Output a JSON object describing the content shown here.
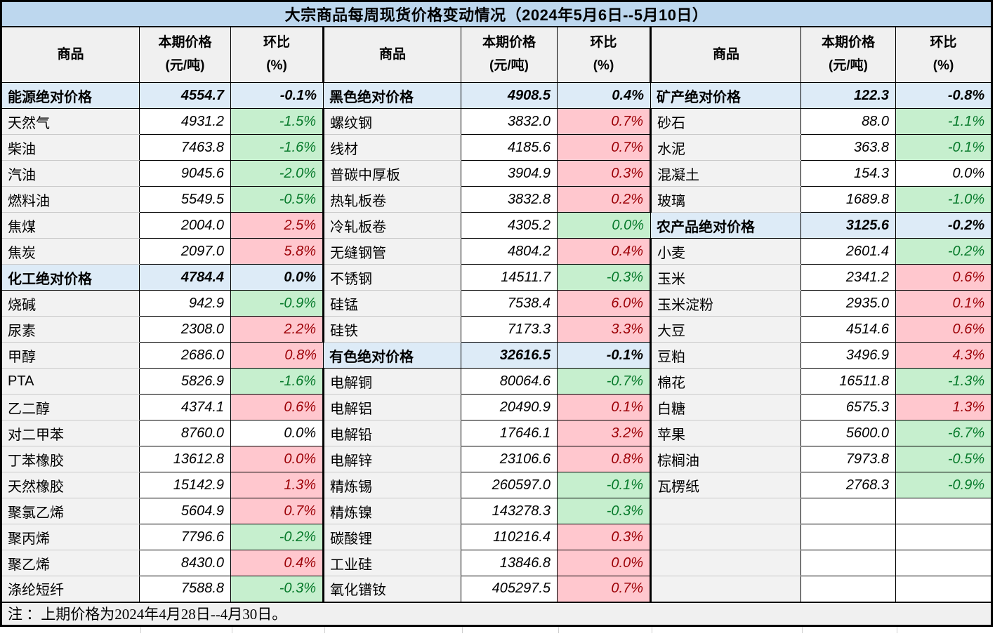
{
  "title": "大宗商品每周现货价格变动情况（2024年5月6日--5月10日）",
  "note": "注 ：上期价格为2024年4月28日--4月30日。",
  "header": {
    "commodity": "商品",
    "price_line1": "本期价格",
    "price_line2": "(元/吨)",
    "pct_line1": "环比",
    "pct_line2": "(%)"
  },
  "colors": {
    "title_bg": "#BDD7EE",
    "header_bg": "#F0F0F0",
    "name_bg": "#F2F2F2",
    "section_bg": "#DDEBF7",
    "up_bg": "#FFC7CE",
    "up_text": "#9C0006",
    "down_bg": "#C6EFCE",
    "down_text": "#077A2B"
  },
  "chart_data": {
    "type": "table",
    "title": "大宗商品每周现货价格变动情况（2024年5月6日--5月10日）",
    "columns_per_group": [
      "商品",
      "本期价格(元/吨)",
      "环比(%)"
    ],
    "groups": [
      {
        "rows": [
          {
            "name": "能源绝对价格",
            "price": "4554.7",
            "pct": "-0.1%",
            "style": "section"
          },
          {
            "name": "天然气",
            "price": "4931.2",
            "pct": "-1.5%",
            "style": "down"
          },
          {
            "name": "柴油",
            "price": "7463.8",
            "pct": "-1.6%",
            "style": "down"
          },
          {
            "name": "汽油",
            "price": "9045.6",
            "pct": "-2.0%",
            "style": "down"
          },
          {
            "name": "燃料油",
            "price": "5549.5",
            "pct": "-0.5%",
            "style": "down"
          },
          {
            "name": "焦煤",
            "price": "2004.0",
            "pct": "2.5%",
            "style": "up"
          },
          {
            "name": "焦炭",
            "price": "2097.0",
            "pct": "5.8%",
            "style": "up"
          },
          {
            "name": "化工绝对价格",
            "price": "4784.4",
            "pct": "0.0%",
            "style": "section"
          },
          {
            "name": "烧碱",
            "price": "942.9",
            "pct": "-0.9%",
            "style": "down"
          },
          {
            "name": "尿素",
            "price": "2308.0",
            "pct": "2.2%",
            "style": "up"
          },
          {
            "name": "甲醇",
            "price": "2686.0",
            "pct": "0.8%",
            "style": "up"
          },
          {
            "name": "PTA",
            "price": "5826.9",
            "pct": "-1.6%",
            "style": "down"
          },
          {
            "name": "乙二醇",
            "price": "4374.1",
            "pct": "0.6%",
            "style": "up"
          },
          {
            "name": "对二甲苯",
            "price": "8760.0",
            "pct": "0.0%",
            "style": "flat"
          },
          {
            "name": "丁苯橡胶",
            "price": "13612.8",
            "pct": "0.0%",
            "style": "up"
          },
          {
            "name": "天然橡胶",
            "price": "15142.9",
            "pct": "1.3%",
            "style": "up"
          },
          {
            "name": "聚氯乙烯",
            "price": "5604.9",
            "pct": "0.7%",
            "style": "up"
          },
          {
            "name": "聚丙烯",
            "price": "7796.6",
            "pct": "-0.2%",
            "style": "down"
          },
          {
            "name": "聚乙烯",
            "price": "8430.0",
            "pct": "0.4%",
            "style": "up"
          },
          {
            "name": "涤纶短纤",
            "price": "7588.8",
            "pct": "-0.3%",
            "style": "down"
          }
        ]
      },
      {
        "rows": [
          {
            "name": "黑色绝对价格",
            "price": "4908.5",
            "pct": "0.4%",
            "style": "section"
          },
          {
            "name": "螺纹钢",
            "price": "3832.0",
            "pct": "0.7%",
            "style": "up"
          },
          {
            "name": "线材",
            "price": "4185.6",
            "pct": "0.7%",
            "style": "up"
          },
          {
            "name": "普碳中厚板",
            "price": "3904.9",
            "pct": "0.3%",
            "style": "up"
          },
          {
            "name": "热轧板卷",
            "price": "3832.8",
            "pct": "0.2%",
            "style": "up"
          },
          {
            "name": "冷轧板卷",
            "price": "4305.2",
            "pct": "0.0%",
            "style": "down"
          },
          {
            "name": "无缝钢管",
            "price": "4804.2",
            "pct": "0.4%",
            "style": "up"
          },
          {
            "name": "不锈钢",
            "price": "14511.7",
            "pct": "-0.3%",
            "style": "down"
          },
          {
            "name": "硅锰",
            "price": "7538.4",
            "pct": "6.0%",
            "style": "up"
          },
          {
            "name": "硅铁",
            "price": "7173.3",
            "pct": "3.3%",
            "style": "up"
          },
          {
            "name": "有色绝对价格",
            "price": "32616.5",
            "pct": "-0.1%",
            "style": "section"
          },
          {
            "name": "电解铜",
            "price": "80064.6",
            "pct": "-0.7%",
            "style": "down"
          },
          {
            "name": "电解铝",
            "price": "20490.9",
            "pct": "0.1%",
            "style": "up"
          },
          {
            "name": "电解铅",
            "price": "17646.1",
            "pct": "3.2%",
            "style": "up"
          },
          {
            "name": "电解锌",
            "price": "23106.6",
            "pct": "0.8%",
            "style": "up"
          },
          {
            "name": "精炼锡",
            "price": "260597.0",
            "pct": "-0.1%",
            "style": "down"
          },
          {
            "name": "精炼镍",
            "price": "143278.3",
            "pct": "-0.3%",
            "style": "down"
          },
          {
            "name": "碳酸锂",
            "price": "110216.4",
            "pct": "0.3%",
            "style": "up"
          },
          {
            "name": "工业硅",
            "price": "13846.8",
            "pct": "0.0%",
            "style": "up"
          },
          {
            "name": "氧化镨钕",
            "price": "405297.5",
            "pct": "0.7%",
            "style": "up"
          }
        ]
      },
      {
        "rows": [
          {
            "name": "矿产绝对价格",
            "price": "122.3",
            "pct": "-0.8%",
            "style": "section"
          },
          {
            "name": "砂石",
            "price": "88.0",
            "pct": "-1.1%",
            "style": "down"
          },
          {
            "name": "水泥",
            "price": "363.8",
            "pct": "-0.1%",
            "style": "down"
          },
          {
            "name": "混凝土",
            "price": "154.3",
            "pct": "0.0%",
            "style": "flat"
          },
          {
            "name": "玻璃",
            "price": "1689.8",
            "pct": "-1.0%",
            "style": "down"
          },
          {
            "name": "农产品绝对价格",
            "price": "3125.6",
            "pct": "-0.2%",
            "style": "section"
          },
          {
            "name": "小麦",
            "price": "2601.4",
            "pct": "-0.2%",
            "style": "down"
          },
          {
            "name": "玉米",
            "price": "2341.2",
            "pct": "0.6%",
            "style": "up"
          },
          {
            "name": "玉米淀粉",
            "price": "2935.0",
            "pct": "0.1%",
            "style": "up"
          },
          {
            "name": "大豆",
            "price": "4514.6",
            "pct": "0.6%",
            "style": "up"
          },
          {
            "name": "豆粕",
            "price": "3496.9",
            "pct": "4.3%",
            "style": "up"
          },
          {
            "name": "棉花",
            "price": "16511.8",
            "pct": "-1.3%",
            "style": "down"
          },
          {
            "name": "白糖",
            "price": "6575.3",
            "pct": "1.3%",
            "style": "up"
          },
          {
            "name": "苹果",
            "price": "5600.0",
            "pct": "-6.7%",
            "style": "down"
          },
          {
            "name": "棕榈油",
            "price": "7973.8",
            "pct": "-0.5%",
            "style": "down"
          },
          {
            "name": "瓦楞纸",
            "price": "2768.3",
            "pct": "-0.9%",
            "style": "down"
          },
          {
            "name": "",
            "price": "",
            "pct": "",
            "style": "empty"
          },
          {
            "name": "",
            "price": "",
            "pct": "",
            "style": "empty"
          },
          {
            "name": "",
            "price": "",
            "pct": "",
            "style": "empty"
          },
          {
            "name": "",
            "price": "",
            "pct": "",
            "style": "empty"
          }
        ]
      }
    ]
  }
}
